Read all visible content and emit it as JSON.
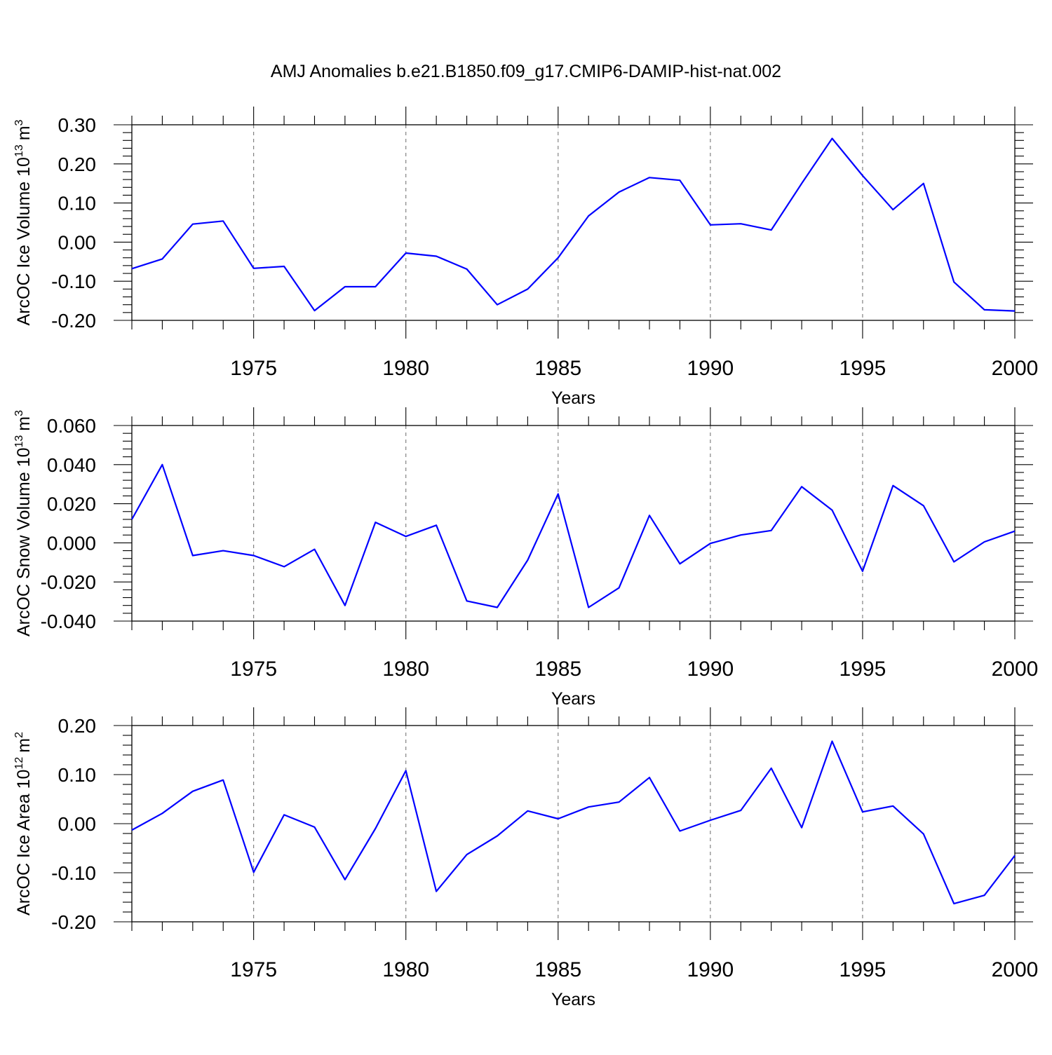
{
  "title": "AMJ Anomalies b.e21.B1850.f09_g17.CMIP6-DAMIP-hist-nat.002",
  "colors": {
    "series": "#0000ff",
    "grid": "#777777",
    "axes": "#000000"
  },
  "chart_data": [
    {
      "type": "line",
      "xlabel": "Years",
      "ylabel": "ArcOC Ice Volume 10",
      "ylabel_exponent": "13",
      "ylabel_unit": "m",
      "ylabel_unit_exponent": "3",
      "xlim": [
        1971,
        2000
      ],
      "ylim": [
        -0.2,
        0.3
      ],
      "yticks": [
        "-0.20",
        "-0.10",
        "0.00",
        "0.10",
        "0.20",
        "0.30"
      ],
      "ytick_values": [
        -0.2,
        -0.1,
        0.0,
        0.1,
        0.2,
        0.3
      ],
      "xticks": [
        "1975",
        "1980",
        "1985",
        "1990",
        "1995",
        "2000"
      ],
      "xtick_values": [
        1975,
        1980,
        1985,
        1990,
        1995,
        2000
      ],
      "x": [
        1971,
        1972,
        1973,
        1974,
        1975,
        1976,
        1977,
        1978,
        1979,
        1980,
        1981,
        1982,
        1983,
        1984,
        1985,
        1986,
        1987,
        1988,
        1989,
        1990,
        1991,
        1992,
        1993,
        1994,
        1995,
        1996,
        1997,
        1998,
        1999,
        2000
      ],
      "values": [
        -0.068,
        -0.043,
        0.046,
        0.054,
        -0.067,
        -0.062,
        -0.175,
        -0.114,
        -0.114,
        -0.028,
        -0.036,
        -0.069,
        -0.16,
        -0.12,
        -0.04,
        0.067,
        0.128,
        0.165,
        0.158,
        0.044,
        0.047,
        0.031,
        0.15,
        0.265,
        0.17,
        0.083,
        0.15,
        -0.102,
        -0.173,
        -0.176
      ],
      "grid": "vertical dashed at major x ticks"
    },
    {
      "type": "line",
      "xlabel": "Years",
      "ylabel": "ArcOC Snow Volume 10",
      "ylabel_exponent": "13",
      "ylabel_unit": "m",
      "ylabel_unit_exponent": "3",
      "xlim": [
        1971,
        2000
      ],
      "ylim": [
        -0.04,
        0.06
      ],
      "yticks": [
        "-0.040",
        "-0.020",
        "0.000",
        "0.020",
        "0.040",
        "0.060"
      ],
      "ytick_values": [
        -0.04,
        -0.02,
        0.0,
        0.02,
        0.04,
        0.06
      ],
      "xticks": [
        "1975",
        "1980",
        "1985",
        "1990",
        "1995",
        "2000"
      ],
      "xtick_values": [
        1975,
        1980,
        1985,
        1990,
        1995,
        2000
      ],
      "x": [
        1971,
        1972,
        1973,
        1974,
        1975,
        1976,
        1977,
        1978,
        1979,
        1980,
        1981,
        1982,
        1983,
        1984,
        1985,
        1986,
        1987,
        1988,
        1989,
        1990,
        1991,
        1992,
        1993,
        1994,
        1995,
        1996,
        1997,
        1998,
        1999,
        2000
      ],
      "values": [
        0.012,
        0.04,
        -0.0065,
        -0.004,
        -0.0065,
        -0.0122,
        -0.0033,
        -0.032,
        0.0105,
        0.0033,
        0.009,
        -0.0297,
        -0.033,
        -0.0088,
        0.025,
        -0.033,
        -0.023,
        0.014,
        -0.0107,
        -0.0003,
        0.004,
        0.0063,
        0.0287,
        0.0167,
        -0.0145,
        0.0293,
        0.019,
        -0.0097,
        0.0005,
        0.006
      ],
      "grid": "vertical dashed at major x ticks"
    },
    {
      "type": "line",
      "xlabel": "Years",
      "ylabel": "ArcOC Ice Area 10",
      "ylabel_exponent": "12",
      "ylabel_unit": "m",
      "ylabel_unit_exponent": "2",
      "xlim": [
        1971,
        2000
      ],
      "ylim": [
        -0.2,
        0.2
      ],
      "yticks": [
        "-0.20",
        "-0.10",
        "0.00",
        "0.10",
        "0.20"
      ],
      "ytick_values": [
        -0.2,
        -0.1,
        0.0,
        0.1,
        0.2
      ],
      "xticks": [
        "1975",
        "1980",
        "1985",
        "1990",
        "1995",
        "2000"
      ],
      "xtick_values": [
        1975,
        1980,
        1985,
        1990,
        1995,
        2000
      ],
      "x": [
        1971,
        1972,
        1973,
        1974,
        1975,
        1976,
        1977,
        1978,
        1979,
        1980,
        1981,
        1982,
        1983,
        1984,
        1985,
        1986,
        1987,
        1988,
        1989,
        1990,
        1991,
        1992,
        1993,
        1994,
        1995,
        1996,
        1997,
        1998,
        1999,
        2000
      ],
      "values": [
        -0.013,
        0.021,
        0.066,
        0.089,
        -0.099,
        0.018,
        -0.007,
        -0.114,
        -0.01,
        0.108,
        -0.138,
        -0.063,
        -0.025,
        0.026,
        0.01,
        0.034,
        0.044,
        0.094,
        -0.015,
        0.007,
        0.027,
        0.113,
        -0.008,
        0.168,
        0.024,
        0.036,
        -0.021,
        -0.163,
        -0.146,
        -0.065
      ],
      "grid": "vertical dashed at major x ticks"
    }
  ]
}
